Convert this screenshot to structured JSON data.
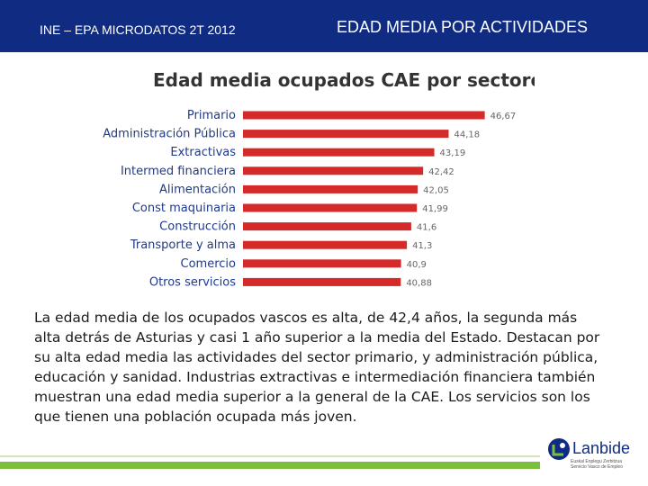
{
  "header": {
    "left_text": "INE – EPA MICRODATOS 2T 2012",
    "right_text": "EDAD MEDIA POR ACTIVIDADES"
  },
  "chart_data": {
    "type": "bar",
    "orientation": "horizontal",
    "title": "Edad media ocupados CAE por sectores",
    "categories": [
      "Primario",
      "Administración Pública",
      "Extractivas",
      "Intermed financiera",
      "Alimentación",
      "Const maquinaria",
      "Construcción",
      "Transporte y alma",
      "Comercio",
      "Otros servicios"
    ],
    "values": [
      46.67,
      44.18,
      43.19,
      42.42,
      42.05,
      41.99,
      41.6,
      41.3,
      40.9,
      40.88
    ],
    "value_labels": [
      "46,67",
      "44,18",
      "43,19",
      "42,42",
      "42,05",
      "41,99",
      "41,6",
      "41,3",
      "40,9",
      "40,88"
    ],
    "xlim": [
      30,
      47.5
    ],
    "bar_color": "#d42a2a",
    "grid": false,
    "legend": "none"
  },
  "body": {
    "paragraph": "La edad media de los ocupados vascos es alta, de 42,4 años, la segunda más\nalta detrás de Asturias y casi 1 año superior a la media del Estado. Destacan por\nsu alta edad media las actividades del sector primario, y administración pública,\neducación y sanidad. Industrias extractivas e intermediación financiera también\nmuestran una edad media superior a la general de la CAE. Los servicios son los\nque tienen una población ocupada más joven."
  },
  "footer": {
    "logo_text": "Lanbide",
    "logo_subtext": "Euskal Enplegu Zerbitzua\nServicio Vasco de Empleo",
    "brand_color": "#0f2b82",
    "accent_color": "#7cbf3f"
  }
}
